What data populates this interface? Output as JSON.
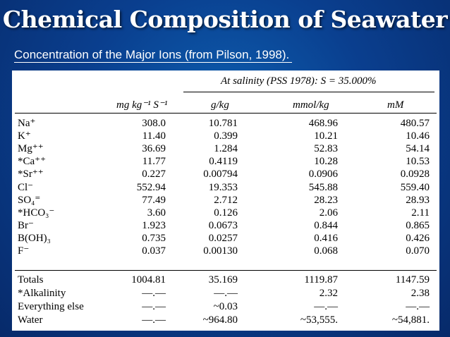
{
  "title": "Chemical Composition of Seawater",
  "subtitle": "Concentration of the Major Ions (from Pilson, 1998).",
  "table": {
    "group_header": "At salinity (PSS 1978): S = 35.000%",
    "columns": [
      "mg kg⁻¹ S⁻¹",
      "g/kg",
      "mmol/kg",
      "mM"
    ],
    "rows": [
      {
        "ion": "Na⁺",
        "v": [
          "308.0",
          "10.781",
          "468.96",
          "480.57"
        ]
      },
      {
        "ion": "K⁺",
        "v": [
          "11.40",
          "0.399",
          "10.21",
          "10.46"
        ]
      },
      {
        "ion": "Mg⁺⁺",
        "v": [
          "36.69",
          "1.284",
          "52.83",
          "54.14"
        ]
      },
      {
        "ion": "*Ca⁺⁺",
        "v": [
          "11.77",
          "0.4119",
          "10.28",
          "10.53"
        ]
      },
      {
        "ion": "*Sr⁺⁺",
        "v": [
          "0.227",
          "0.00794",
          "0.0906",
          "0.0928"
        ]
      },
      {
        "ion": "Cl⁻",
        "v": [
          "552.94",
          "19.353",
          "545.88",
          "559.40"
        ]
      },
      {
        "ion": "SO₄⁼",
        "v": [
          "77.49",
          "2.712",
          "28.23",
          "28.93"
        ]
      },
      {
        "ion": "*HCO₃⁻",
        "v": [
          "3.60",
          "0.126",
          "2.06",
          "2.11"
        ]
      },
      {
        "ion": "Br⁻",
        "v": [
          "1.923",
          "0.0673",
          "0.844",
          "0.865"
        ]
      },
      {
        "ion": "B(OH)₃",
        "v": [
          "0.735",
          "0.0257",
          "0.416",
          "0.426"
        ]
      },
      {
        "ion": "F⁻",
        "v": [
          "0.037",
          "0.00130",
          "0.068",
          "0.070"
        ]
      }
    ],
    "totals": [
      {
        "label": "Totals",
        "v": [
          "1004.81",
          "35.169",
          "1119.87",
          "1147.59"
        ]
      },
      {
        "label": "*Alkalinity",
        "v": [
          "—.—",
          "—.—",
          "2.32",
          "2.38"
        ]
      },
      {
        "label": "Everything else",
        "v": [
          "—.—",
          "~0.03",
          "—.—",
          "—.—"
        ]
      },
      {
        "label": "Water",
        "v": [
          "—.—",
          "~964.80",
          "~53,555.",
          "~54,881."
        ]
      }
    ]
  }
}
